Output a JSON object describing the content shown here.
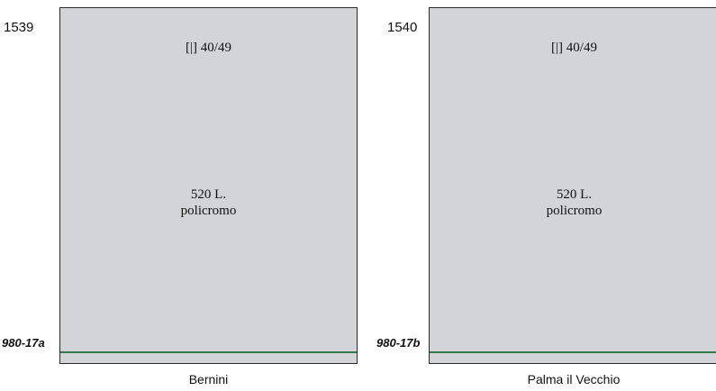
{
  "stamps": [
    {
      "number": "1539",
      "perforation": "[|] 40/49",
      "value": "520 L.",
      "print": "policromo",
      "code": "980-17a",
      "caption": "Bernini"
    },
    {
      "number": "1540",
      "perforation": "[|] 40/49",
      "value": "520 L.",
      "print": "policromo",
      "code": "980-17b",
      "caption": "Palma il Vecchio"
    }
  ],
  "colors": {
    "stamp_fill": "#d3d4d7",
    "border": "#2a2a2a",
    "line": "#2f7a4a"
  }
}
